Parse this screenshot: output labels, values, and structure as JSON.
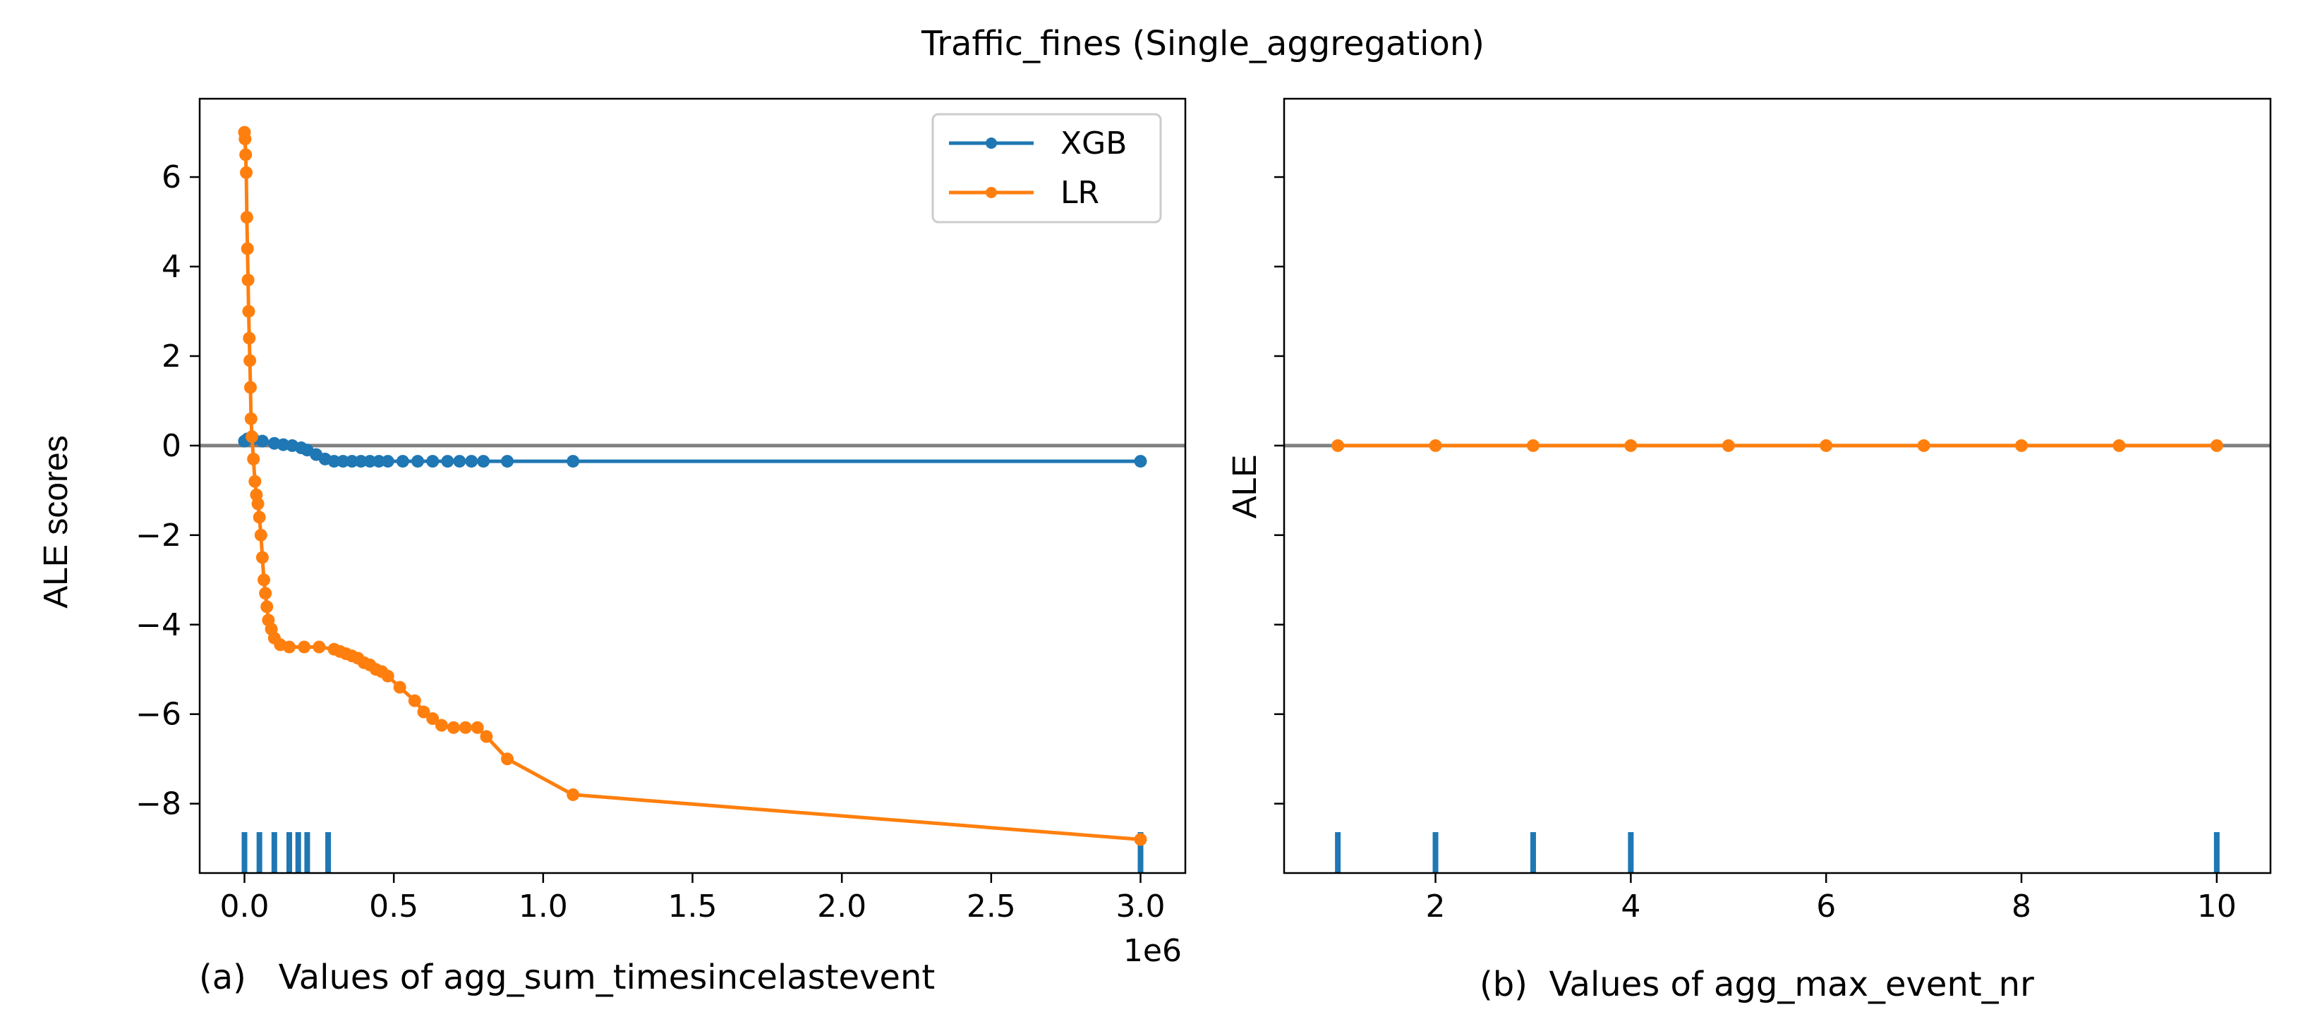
{
  "figure": {
    "suptitle": "Traffic_fines (Single_aggregation)",
    "colors": {
      "xgb": "#1f77b4",
      "lr": "#ff7f0e",
      "zero_line": "#808080",
      "rug": "#1f77b4"
    }
  },
  "chart_data": [
    {
      "type": "line",
      "caption": "(a)   Values of agg_sum_timesincelastevent",
      "ylabel": "ALE scores",
      "xlim": [
        -150000,
        3150000
      ],
      "ylim": [
        -9.55,
        7.75
      ],
      "xticks": [
        0,
        500000,
        1000000,
        1500000,
        2000000,
        2500000,
        3000000
      ],
      "xtick_labels": [
        "0.0",
        "0.5",
        "1.0",
        "1.5",
        "2.0",
        "2.5",
        "3.0"
      ],
      "x_offset_label": "1e6",
      "yticks": [
        6,
        4,
        2,
        0,
        -2,
        -4,
        -6,
        -8
      ],
      "ytick_labels": [
        "6",
        "4",
        "2",
        "0",
        "−2",
        "−4",
        "−6",
        "−8"
      ],
      "legend": {
        "position": "top-right",
        "entries": [
          "XGB",
          "LR"
        ]
      },
      "zero_line": 0,
      "rug": [
        0,
        50000,
        100000,
        150000,
        180000,
        210000,
        280000,
        3000000
      ],
      "series": [
        {
          "name": "XGB",
          "x": [
            0,
            10000,
            30000,
            60000,
            100000,
            130000,
            160000,
            190000,
            210000,
            240000,
            270000,
            300000,
            330000,
            360000,
            390000,
            420000,
            450000,
            480000,
            530000,
            580000,
            630000,
            680000,
            720000,
            760000,
            800000,
            880000,
            1100000,
            3000000
          ],
          "y": [
            0.1,
            0.15,
            0.15,
            0.1,
            0.05,
            0.02,
            0.0,
            -0.05,
            -0.1,
            -0.2,
            -0.3,
            -0.35,
            -0.35,
            -0.35,
            -0.35,
            -0.35,
            -0.35,
            -0.35,
            -0.35,
            -0.35,
            -0.35,
            -0.35,
            -0.35,
            -0.35,
            -0.35,
            -0.35,
            -0.35,
            -0.35
          ]
        },
        {
          "name": "LR",
          "x": [
            0,
            2000,
            4000,
            6000,
            8000,
            10000,
            12000,
            14000,
            16000,
            18000,
            20000,
            22000,
            25000,
            30000,
            35000,
            40000,
            45000,
            50000,
            55000,
            60000,
            65000,
            70000,
            75000,
            80000,
            90000,
            100000,
            120000,
            150000,
            200000,
            250000,
            300000,
            320000,
            340000,
            360000,
            380000,
            400000,
            420000,
            440000,
            460000,
            480000,
            520000,
            570000,
            600000,
            630000,
            660000,
            700000,
            740000,
            780000,
            810000,
            880000,
            1100000,
            3000000
          ],
          "y": [
            7.0,
            6.85,
            6.5,
            6.1,
            5.1,
            4.4,
            3.7,
            3.0,
            2.4,
            1.9,
            1.3,
            0.6,
            0.2,
            -0.3,
            -0.8,
            -1.1,
            -1.3,
            -1.6,
            -2.0,
            -2.5,
            -3.0,
            -3.3,
            -3.6,
            -3.9,
            -4.1,
            -4.3,
            -4.45,
            -4.5,
            -4.5,
            -4.5,
            -4.55,
            -4.6,
            -4.65,
            -4.7,
            -4.75,
            -4.85,
            -4.9,
            -5.0,
            -5.05,
            -5.15,
            -5.4,
            -5.7,
            -5.95,
            -6.1,
            -6.25,
            -6.3,
            -6.3,
            -6.3,
            -6.5,
            -7.0,
            -7.8,
            -8.8
          ]
        }
      ]
    },
    {
      "type": "line",
      "caption": "(b)  Values of agg_max_event_nr",
      "ylabel": "ALE",
      "xlim": [
        0.45,
        10.55
      ],
      "ylim": [
        -9.55,
        7.75
      ],
      "xticks": [
        2,
        4,
        6,
        8,
        10
      ],
      "xtick_labels": [
        "2",
        "4",
        "6",
        "8",
        "10"
      ],
      "yticks": [
        6,
        4,
        2,
        0,
        -2,
        -4,
        -6,
        -8
      ],
      "zero_line": 0,
      "rug": [
        1,
        2,
        3,
        4,
        10
      ],
      "series": [
        {
          "name": "LR",
          "x": [
            1,
            2,
            3,
            4,
            5,
            6,
            7,
            8,
            9,
            10
          ],
          "y": [
            0,
            0,
            0,
            0,
            0,
            0,
            0,
            0,
            0,
            0
          ]
        }
      ]
    }
  ]
}
